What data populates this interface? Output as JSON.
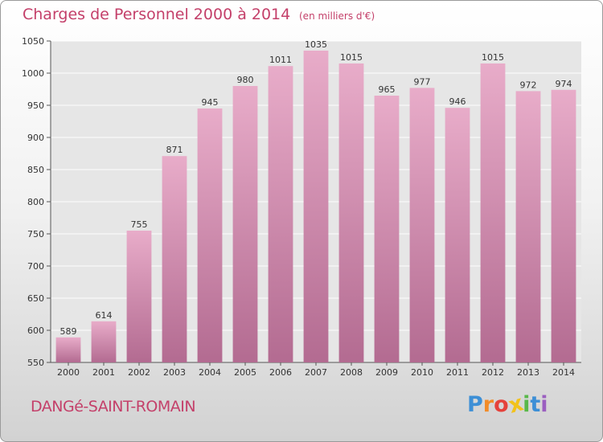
{
  "chart_data": {
    "type": "bar",
    "title": "Charges de Personnel 2000 à 2014",
    "subtitle": "(en milliers d'€)",
    "categories": [
      "2000",
      "2001",
      "2002",
      "2003",
      "2004",
      "2005",
      "2006",
      "2007",
      "2008",
      "2009",
      "2010",
      "2011",
      "2012",
      "2013",
      "2014"
    ],
    "values": [
      589,
      614,
      755,
      871,
      945,
      980,
      1011,
      1035,
      1015,
      965,
      977,
      946,
      1015,
      972,
      974
    ],
    "ylim": [
      550,
      1050
    ],
    "yticks": [
      550,
      600,
      650,
      700,
      750,
      800,
      850,
      900,
      950,
      1000,
      1050
    ],
    "grid": true,
    "bar_color_top": "#e8acc9",
    "bar_color_bottom": "#b36b91"
  },
  "footer": {
    "town": "DANGé-SAINT-ROMAIN",
    "logo_letters": [
      "P",
      "r",
      "o",
      "x",
      "i",
      "t",
      "i"
    ],
    "logo_colors": [
      "#3d8fd6",
      "#f28c28",
      "#e5423b",
      "#f2c21b",
      "#59b84a",
      "#3d8fd6",
      "#9b5fc0"
    ]
  }
}
